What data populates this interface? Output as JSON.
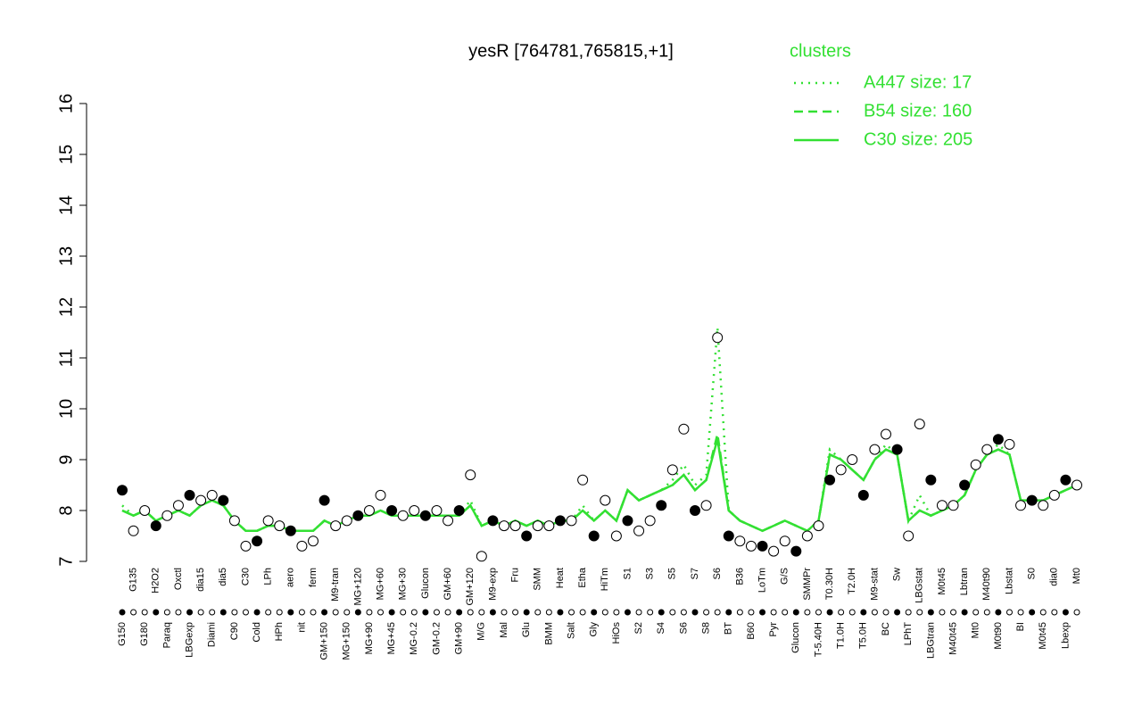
{
  "chart_data": {
    "type": "line",
    "title": "yesR [764781,765815,+1]",
    "legend_title": "clusters",
    "legend_position": "top-right",
    "categories": [
      "G150",
      "G135",
      "G180",
      "H2O2",
      "Paraq",
      "Oxctl",
      "LBGexp",
      "dia15",
      "Diami",
      "dia5",
      "C90",
      "C30",
      "Cold",
      "LPh",
      "HPh",
      "aero",
      "nit",
      "ferm",
      "GM+150",
      "M9-tran",
      "MG+150",
      "MG+120",
      "MG+90",
      "MG+60",
      "MG+45",
      "MG+30",
      "MG-0.2",
      "Glucon",
      "GM-0.2",
      "GM+60",
      "GM+90",
      "GM+120",
      "M/G",
      "M9-exp",
      "Mal",
      "Fru",
      "Glu",
      "SMM",
      "BMM",
      "Heat",
      "Salt",
      "Etha",
      "Gly",
      "HiTm",
      "HiOs",
      "S1",
      "S2",
      "S3",
      "S4",
      "S5",
      "S6",
      "S7",
      "S8",
      "S6",
      "BT",
      "B36",
      "B60",
      "LoTm",
      "Pyr",
      "G/S",
      "Glucon",
      "SMMPr",
      "T-5.40H",
      "T0.30H",
      "T1.0H",
      "T2.0H",
      "T5.0H",
      "M9-stat",
      "BC",
      "Sw",
      "LPhT",
      "LBGstat",
      "LBGtran",
      "M0t45",
      "M40t45",
      "Lbtran",
      "Mt0",
      "M40t90",
      "M0t90",
      "Lbstat",
      "BI",
      "S0",
      "M0t45",
      "dia0",
      "Lbexp",
      "Mt0"
    ],
    "values": [
      8.4,
      7.6,
      8.0,
      7.7,
      7.9,
      8.1,
      8.3,
      8.2,
      8.3,
      8.2,
      7.8,
      7.3,
      7.4,
      7.8,
      7.7,
      7.6,
      7.3,
      7.4,
      8.2,
      7.7,
      7.8,
      7.9,
      8.0,
      8.3,
      8.0,
      7.9,
      8.0,
      7.9,
      8.0,
      7.8,
      8.0,
      8.7,
      7.1,
      7.8,
      7.7,
      7.7,
      7.5,
      7.7,
      7.7,
      7.8,
      7.8,
      8.6,
      7.5,
      8.2,
      7.5,
      7.8,
      7.6,
      7.8,
      8.1,
      8.8,
      9.6,
      8.0,
      8.1,
      11.4,
      7.5,
      7.4,
      7.3,
      7.3,
      7.2,
      7.4,
      7.2,
      7.5,
      7.7,
      8.6,
      8.8,
      9.0,
      8.3,
      9.2,
      9.5,
      9.2,
      7.5,
      9.7,
      8.6,
      8.1,
      8.1,
      8.5,
      8.9,
      9.2,
      9.4,
      9.3,
      8.1,
      8.2,
      8.1,
      8.3,
      8.6,
      8.5
    ],
    "series": [
      {
        "name": "A447 size: 17",
        "color": "#33e033",
        "style": "dotted",
        "values": [
          8.1,
          7.9,
          8.0,
          7.8,
          7.9,
          8.0,
          7.9,
          8.1,
          8.2,
          8.1,
          7.8,
          7.6,
          7.6,
          7.7,
          7.7,
          7.6,
          7.6,
          7.6,
          7.8,
          7.7,
          7.8,
          7.9,
          7.9,
          8.0,
          7.9,
          7.9,
          7.9,
          7.9,
          7.9,
          7.9,
          7.9,
          8.2,
          7.7,
          7.8,
          7.7,
          7.8,
          7.7,
          7.8,
          7.7,
          7.8,
          7.8,
          8.1,
          7.8,
          8.0,
          7.8,
          8.4,
          8.2,
          8.3,
          8.4,
          8.6,
          8.9,
          8.5,
          8.7,
          11.6,
          8.0,
          7.8,
          7.7,
          7.6,
          7.7,
          7.8,
          7.7,
          7.6,
          7.8,
          9.2,
          9.0,
          8.8,
          8.6,
          9.0,
          9.3,
          9.1,
          7.8,
          8.3,
          7.9,
          8.0,
          8.1,
          8.3,
          8.8,
          9.1,
          9.3,
          9.1,
          8.2,
          8.2,
          8.2,
          8.3,
          8.4,
          8.5
        ]
      },
      {
        "name": "B54 size: 160",
        "color": "#33e033",
        "style": "dashed",
        "values": [
          8.0,
          7.9,
          8.0,
          7.8,
          7.9,
          8.0,
          7.9,
          8.1,
          8.2,
          8.1,
          7.8,
          7.6,
          7.6,
          7.7,
          7.7,
          7.6,
          7.6,
          7.6,
          7.8,
          7.7,
          7.8,
          7.9,
          7.9,
          8.0,
          7.9,
          7.9,
          7.9,
          7.9,
          7.9,
          7.9,
          7.9,
          8.1,
          7.7,
          7.8,
          7.7,
          7.8,
          7.7,
          7.8,
          7.7,
          7.8,
          7.8,
          8.0,
          7.8,
          8.0,
          7.8,
          8.4,
          8.2,
          8.3,
          8.4,
          8.5,
          8.7,
          8.4,
          8.6,
          9.5,
          8.0,
          7.8,
          7.7,
          7.6,
          7.7,
          7.8,
          7.7,
          7.6,
          7.8,
          9.1,
          9.0,
          8.8,
          8.6,
          9.0,
          9.2,
          9.1,
          7.8,
          8.0,
          7.9,
          8.0,
          8.1,
          8.3,
          8.8,
          9.1,
          9.2,
          9.1,
          8.2,
          8.2,
          8.2,
          8.3,
          8.4,
          8.5
        ]
      },
      {
        "name": "C30 size: 205",
        "color": "#33e033",
        "style": "solid",
        "values": [
          8.0,
          7.9,
          8.0,
          7.8,
          7.9,
          8.0,
          7.9,
          8.1,
          8.2,
          8.1,
          7.8,
          7.6,
          7.6,
          7.7,
          7.7,
          7.6,
          7.6,
          7.6,
          7.8,
          7.7,
          7.8,
          7.9,
          7.9,
          8.0,
          7.9,
          7.9,
          7.9,
          7.9,
          7.9,
          7.9,
          7.9,
          8.1,
          7.7,
          7.8,
          7.7,
          7.8,
          7.7,
          7.8,
          7.7,
          7.8,
          7.8,
          8.0,
          7.8,
          8.0,
          7.8,
          8.4,
          8.2,
          8.3,
          8.4,
          8.5,
          8.7,
          8.4,
          8.6,
          9.4,
          8.0,
          7.8,
          7.7,
          7.6,
          7.7,
          7.8,
          7.7,
          7.6,
          7.8,
          9.1,
          9.0,
          8.8,
          8.6,
          9.0,
          9.2,
          9.1,
          7.8,
          8.0,
          7.9,
          8.0,
          8.1,
          8.3,
          8.8,
          9.1,
          9.2,
          9.1,
          8.2,
          8.2,
          8.2,
          8.3,
          8.4,
          8.5
        ]
      }
    ],
    "ylim": [
      7,
      16
    ],
    "yticks": [
      7,
      8,
      9,
      10,
      11,
      12,
      13,
      14,
      15,
      16
    ],
    "grid": false
  }
}
